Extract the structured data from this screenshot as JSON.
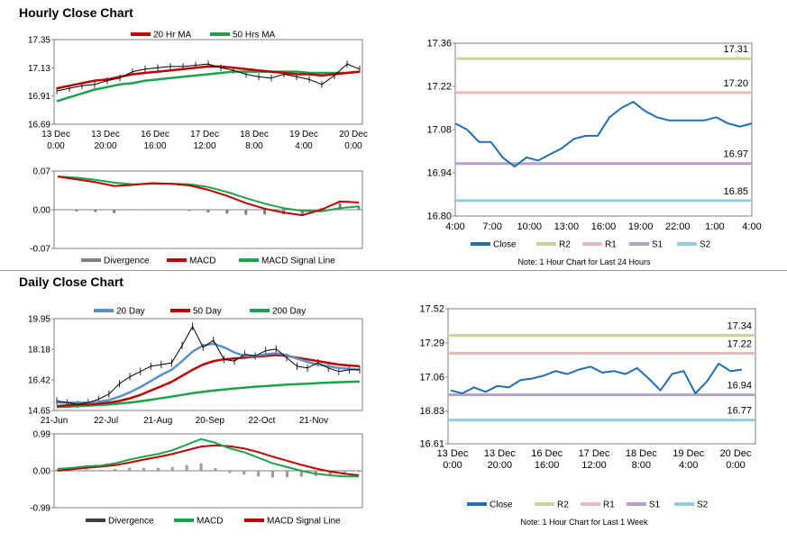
{
  "hourly": {
    "title": "Hourly Close Chart",
    "price_panel": {
      "legend": [
        {
          "name": "20 Hr MA",
          "color": "#c00000"
        },
        {
          "name": "50 Hrs MA",
          "color": "#1aa34a"
        }
      ],
      "y_ticks": [
        "17.35",
        "17.13",
        "16.91",
        "16.69"
      ],
      "ylim": [
        16.69,
        17.35
      ],
      "x_ticks": [
        {
          "line1": "13 Dec",
          "line2": "0:00"
        },
        {
          "line1": "13 Dec",
          "line2": "20:00"
        },
        {
          "line1": "16 Dec",
          "line2": "16:00"
        },
        {
          "line1": "17 Dec",
          "line2": "12:00"
        },
        {
          "line1": "18 Dec",
          "line2": "8:00"
        },
        {
          "line1": "19 Dec",
          "line2": "4:00"
        },
        {
          "line1": "20 Dec",
          "line2": "0:00"
        }
      ],
      "ma20": [
        16.97,
        16.99,
        17.01,
        17.03,
        17.04,
        17.06,
        17.08,
        17.09,
        17.1,
        17.11,
        17.12,
        17.13,
        17.14,
        17.14,
        17.13,
        17.12,
        17.11,
        17.1,
        17.09,
        17.08,
        17.08,
        17.07,
        17.08,
        17.09,
        17.1
      ],
      "ma50": [
        16.87,
        16.9,
        16.93,
        16.96,
        16.98,
        17.0,
        17.01,
        17.03,
        17.04,
        17.05,
        17.06,
        17.07,
        17.08,
        17.09,
        17.1,
        17.1,
        17.1,
        17.1,
        17.1,
        17.1,
        17.09,
        17.09,
        17.09,
        17.09,
        17.1
      ],
      "close": [
        16.95,
        16.97,
        16.99,
        17.0,
        17.03,
        17.05,
        17.1,
        17.12,
        17.13,
        17.14,
        17.14,
        17.15,
        17.16,
        17.13,
        17.11,
        17.08,
        17.06,
        17.05,
        17.08,
        17.06,
        17.04,
        17.0,
        17.07,
        17.16,
        17.12
      ]
    },
    "macd_panel": {
      "y_ticks": [
        "0.07",
        "0.00",
        "-0.07"
      ],
      "ylim": [
        -0.07,
        0.07
      ],
      "legend": [
        {
          "name": "Divergence",
          "color": "#808080"
        },
        {
          "name": "MACD",
          "color": "#c00000"
        },
        {
          "name": "MACD Signal Line",
          "color": "#1aa34a"
        }
      ],
      "macd": [
        0.06,
        0.055,
        0.05,
        0.043,
        0.045,
        0.048,
        0.047,
        0.044,
        0.036,
        0.025,
        0.012,
        0.002,
        -0.005,
        -0.01,
        0.0,
        0.015,
        0.013
      ],
      "signal": [
        0.06,
        0.058,
        0.054,
        0.049,
        0.046,
        0.047,
        0.047,
        0.046,
        0.041,
        0.032,
        0.021,
        0.011,
        0.003,
        -0.002,
        -0.003,
        0.003,
        0.006
      ],
      "divergence": [
        0.0,
        -0.003,
        -0.004,
        -0.006,
        -0.001,
        0.001,
        0.0,
        -0.002,
        -0.005,
        -0.007,
        -0.009,
        -0.009,
        -0.008,
        -0.008,
        0.003,
        0.012,
        0.007
      ]
    },
    "pivot_panel": {
      "y_ticks": [
        "17.36",
        "17.22",
        "17.08",
        "16.94",
        "16.80"
      ],
      "ylim": [
        16.8,
        17.36
      ],
      "x_ticks": [
        "4:00",
        "7:00",
        "10:00",
        "13:00",
        "16:00",
        "19:00",
        "22:00",
        "1:00",
        "4:00"
      ],
      "levels": [
        {
          "name": "R2",
          "value": 17.31,
          "label": "17.31",
          "color": "#c3d69b"
        },
        {
          "name": "R1",
          "value": 17.2,
          "label": "17.20",
          "color": "#e6b9b8"
        },
        {
          "name": "S1",
          "value": 16.97,
          "label": "16.97",
          "color": "#b3a2c7"
        },
        {
          "name": "S2",
          "value": 16.85,
          "label": "16.85",
          "color": "#93cddd"
        }
      ],
      "close": [
        17.1,
        17.08,
        17.04,
        17.04,
        16.99,
        16.96,
        16.99,
        16.98,
        17.0,
        17.02,
        17.05,
        17.06,
        17.06,
        17.12,
        17.15,
        17.17,
        17.14,
        17.12,
        17.11,
        17.11,
        17.11,
        17.11,
        17.12,
        17.1,
        17.09,
        17.1
      ],
      "legend": [
        {
          "name": "Close",
          "color": "#1f6fb2"
        },
        {
          "name": "R2",
          "color": "#c3d69b"
        },
        {
          "name": "R1",
          "color": "#e6b9b8"
        },
        {
          "name": "S1",
          "color": "#b3a2c7"
        },
        {
          "name": "S2",
          "color": "#93cddd"
        }
      ],
      "note": "Note: 1 Hour Chart for Last 24 Hours"
    }
  },
  "daily": {
    "title": "Daily Close Chart",
    "price_panel": {
      "legend": [
        {
          "name": "20 Day",
          "color": "#5b8fc9"
        },
        {
          "name": "50 Day",
          "color": "#c00000"
        },
        {
          "name": "200 Day",
          "color": "#1aa34a"
        }
      ],
      "y_ticks": [
        "19.95",
        "18.18",
        "16.42",
        "14.65"
      ],
      "ylim": [
        14.65,
        19.95
      ],
      "x_ticks": [
        "21-Jun",
        "22-Jul",
        "21-Aug",
        "20-Sep",
        "22-Oct",
        "21-Nov"
      ],
      "close": [
        15.2,
        15.1,
        15.0,
        15.1,
        15.3,
        15.6,
        16.2,
        16.6,
        16.9,
        17.2,
        17.3,
        17.4,
        18.4,
        19.5,
        18.3,
        18.7,
        17.6,
        17.5,
        17.9,
        17.8,
        18.1,
        18.2,
        17.7,
        17.2,
        17.1,
        17.4,
        17.1,
        16.9,
        17.0,
        17.0
      ],
      "ma20": [
        15.1,
        15.1,
        15.1,
        15.1,
        15.15,
        15.25,
        15.45,
        15.7,
        16.0,
        16.35,
        16.7,
        17.0,
        17.5,
        18.05,
        18.4,
        18.5,
        18.3,
        18.0,
        17.8,
        17.8,
        17.9,
        17.95,
        17.85,
        17.65,
        17.45,
        17.3,
        17.2,
        17.1,
        17.05,
        17.0
      ],
      "ma50": [
        14.9,
        14.95,
        15.0,
        15.0,
        15.05,
        15.1,
        15.2,
        15.35,
        15.55,
        15.8,
        16.05,
        16.3,
        16.65,
        17.0,
        17.3,
        17.5,
        17.6,
        17.65,
        17.7,
        17.75,
        17.8,
        17.85,
        17.8,
        17.7,
        17.6,
        17.5,
        17.4,
        17.3,
        17.25,
        17.2
      ],
      "ma200": [
        14.85,
        14.87,
        14.9,
        14.93,
        14.96,
        15.0,
        15.05,
        15.1,
        15.18,
        15.27,
        15.36,
        15.45,
        15.55,
        15.65,
        15.73,
        15.8,
        15.86,
        15.92,
        15.97,
        16.02,
        16.06,
        16.1,
        16.14,
        16.17,
        16.2,
        16.23,
        16.26,
        16.28,
        16.3,
        16.32
      ]
    },
    "macd_panel": {
      "y_ticks": [
        "0.99",
        "0.00",
        "-0.99"
      ],
      "ylim": [
        -0.99,
        0.99
      ],
      "legend": [
        {
          "name": "Divergence",
          "color": "#404040"
        },
        {
          "name": "MACD",
          "color": "#1aa34a"
        },
        {
          "name": "MACD Signal Line",
          "color": "#c00000"
        }
      ],
      "macd": [
        0.05,
        0.08,
        0.12,
        0.14,
        0.2,
        0.3,
        0.38,
        0.45,
        0.55,
        0.7,
        0.85,
        0.75,
        0.6,
        0.5,
        0.35,
        0.2,
        0.1,
        0.0,
        -0.08,
        -0.12,
        -0.15,
        -0.15
      ],
      "signal": [
        0.0,
        0.04,
        0.08,
        0.11,
        0.15,
        0.22,
        0.3,
        0.37,
        0.45,
        0.55,
        0.65,
        0.68,
        0.66,
        0.6,
        0.5,
        0.38,
        0.27,
        0.16,
        0.06,
        -0.02,
        -0.08,
        -0.12
      ],
      "divergence": [
        0.05,
        0.04,
        0.04,
        0.03,
        0.05,
        0.08,
        0.08,
        0.08,
        0.1,
        0.15,
        0.2,
        0.07,
        -0.06,
        -0.1,
        -0.15,
        -0.18,
        -0.17,
        -0.16,
        -0.14,
        -0.1,
        -0.07,
        -0.03
      ]
    },
    "pivot_panel": {
      "y_ticks": [
        "17.52",
        "17.29",
        "17.06",
        "16.83",
        "16.61"
      ],
      "ylim": [
        16.61,
        17.52
      ],
      "x_ticks": [
        {
          "line1": "13 Dec",
          "line2": "0:00"
        },
        {
          "line1": "13 Dec",
          "line2": "20:00"
        },
        {
          "line1": "16 Dec",
          "line2": "16:00"
        },
        {
          "line1": "17 Dec",
          "line2": "12:00"
        },
        {
          "line1": "18 Dec",
          "line2": "8:00"
        },
        {
          "line1": "19 Dec",
          "line2": "4:00"
        },
        {
          "line1": "20 Dec",
          "line2": "0:00"
        }
      ],
      "levels": [
        {
          "name": "R2",
          "value": 17.34,
          "label": "17.34",
          "color": "#c3d69b"
        },
        {
          "name": "R1",
          "value": 17.22,
          "label": "17.22",
          "color": "#e6b9b8"
        },
        {
          "name": "S1",
          "value": 16.94,
          "label": "16.94",
          "color": "#b3a2c7"
        },
        {
          "name": "S2",
          "value": 16.77,
          "label": "16.77",
          "color": "#93cddd"
        }
      ],
      "close": [
        16.97,
        16.95,
        16.99,
        16.96,
        17.0,
        16.99,
        17.04,
        17.05,
        17.07,
        17.1,
        17.08,
        17.11,
        17.13,
        17.09,
        17.1,
        17.08,
        17.12,
        17.05,
        16.97,
        17.08,
        17.1,
        16.95,
        17.03,
        17.15,
        17.1,
        17.11
      ],
      "legend": [
        {
          "name": "Close",
          "color": "#1f6fb2"
        },
        {
          "name": "R2",
          "color": "#c3d69b"
        },
        {
          "name": "R1",
          "color": "#e6b9b8"
        },
        {
          "name": "S1",
          "color": "#b3a2c7"
        },
        {
          "name": "S2",
          "color": "#93cddd"
        }
      ],
      "note": "Note: 1 Hour Chart for Last 1 Week"
    }
  }
}
